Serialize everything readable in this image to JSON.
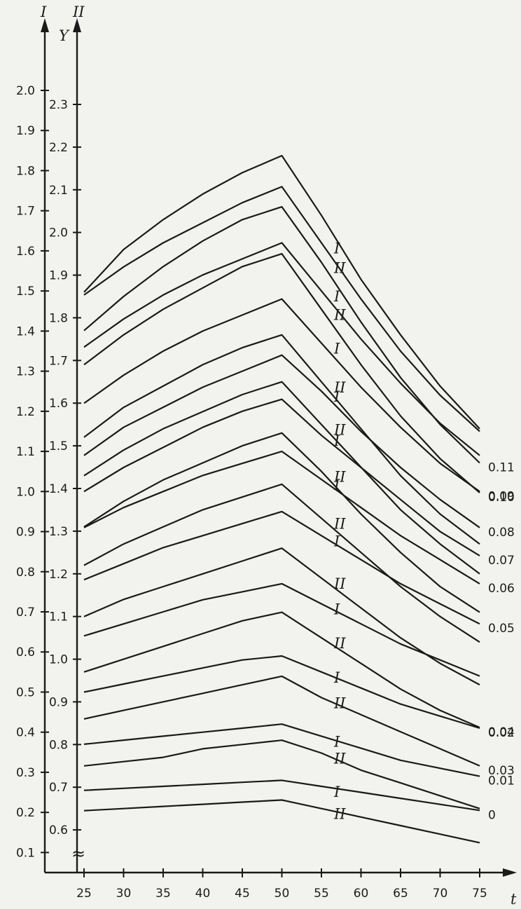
{
  "chart_data": {
    "type": "line",
    "axis_labels": {
      "left": "I",
      "right": "II",
      "y": "Y",
      "x": "t"
    },
    "x_ticks": [
      25,
      30,
      35,
      40,
      45,
      50,
      55,
      60,
      65,
      70,
      75
    ],
    "scale_I": {
      "range": [
        0.05,
        2.0
      ],
      "ticks": [
        "0.1",
        "0.2",
        "0.3",
        "0.4",
        "0.5",
        "0.6",
        "0.7",
        "0.8",
        "0.9",
        "1.0",
        "1.1",
        "1.2",
        "1.3",
        "1.4",
        "1.5",
        "1.6",
        "1.7",
        "1.8",
        "1.9",
        "2.0"
      ]
    },
    "scale_II": {
      "range": [
        0.5,
        2.3
      ],
      "ticks": [
        "0.6",
        "0.7",
        "0.8",
        "0.9",
        "1.0",
        "1.1",
        "1.2",
        "1.3",
        "1.4",
        "1.5",
        "1.6",
        "1.7",
        "1.8",
        "1.9",
        "2.0",
        "2.1",
        "2.2",
        "2.3"
      ]
    },
    "break_symbol": "≈",
    "x": [
      25,
      30,
      35,
      40,
      45,
      50,
      55,
      60,
      65,
      70,
      75
    ],
    "series": [
      {
        "scale": "II",
        "end_label": "",
        "marker": "",
        "values": [
          1.86,
          1.96,
          2.03,
          2.09,
          2.14,
          2.18,
          2.04,
          1.89,
          1.76,
          1.64,
          1.54
        ]
      },
      {
        "scale": "II",
        "end_label": "0.11",
        "marker": "II",
        "values": [
          1.77,
          1.85,
          1.92,
          1.98,
          2.03,
          2.06,
          1.93,
          1.79,
          1.66,
          1.55,
          1.46
        ]
      },
      {
        "scale": "I",
        "end_label": "",
        "marker": "I",
        "values": [
          1.49,
          1.56,
          1.62,
          1.67,
          1.72,
          1.76,
          1.62,
          1.48,
          1.35,
          1.24,
          1.15
        ]
      },
      {
        "scale": "II",
        "end_label": "0.10",
        "marker": "II",
        "values": [
          1.69,
          1.76,
          1.82,
          1.87,
          1.92,
          1.95,
          1.82,
          1.69,
          1.57,
          1.47,
          1.39
        ]
      },
      {
        "scale": "I",
        "end_label": "",
        "marker": "I",
        "values": [
          1.36,
          1.43,
          1.49,
          1.54,
          1.58,
          1.62,
          1.5,
          1.38,
          1.27,
          1.17,
          1.09
        ]
      },
      {
        "scale": "II",
        "end_label": "",
        "marker": "II",
        "values": [
          1.52,
          1.59,
          1.64,
          1.69,
          1.73,
          1.76,
          1.65,
          1.54,
          1.43,
          1.34,
          1.27
        ]
      },
      {
        "scale": "I",
        "end_label": "0.09",
        "marker": "I",
        "values": [
          1.22,
          1.29,
          1.35,
          1.4,
          1.44,
          1.48,
          1.37,
          1.26,
          1.16,
          1.07,
          1.0
        ]
      },
      {
        "scale": "II",
        "end_label": "",
        "marker": "II",
        "values": [
          1.43,
          1.49,
          1.54,
          1.58,
          1.62,
          1.65,
          1.55,
          1.45,
          1.35,
          1.27,
          1.2
        ]
      },
      {
        "scale": "I",
        "end_label": "0.08",
        "marker": "I",
        "values": [
          1.09,
          1.16,
          1.21,
          1.26,
          1.3,
          1.34,
          1.25,
          1.15,
          1.06,
          0.98,
          0.91
        ]
      },
      {
        "scale": "II",
        "end_label": "",
        "marker": "II",
        "values": [
          1.31,
          1.37,
          1.42,
          1.46,
          1.5,
          1.53,
          1.44,
          1.34,
          1.25,
          1.17,
          1.11
        ]
      },
      {
        "scale": "I",
        "end_label": "0.07",
        "marker": "I",
        "values": [
          1.0,
          1.06,
          1.11,
          1.16,
          1.2,
          1.23,
          1.14,
          1.06,
          0.98,
          0.9,
          0.84
        ]
      },
      {
        "scale": "II",
        "end_label": "",
        "marker": "II",
        "values": [
          1.22,
          1.27,
          1.31,
          1.35,
          1.38,
          1.41,
          1.33,
          1.25,
          1.17,
          1.1,
          1.04
        ]
      },
      {
        "scale": "I",
        "end_label": "0.06",
        "marker": "I",
        "values": [
          0.91,
          0.96,
          1.0,
          1.04,
          1.07,
          1.1,
          1.03,
          0.96,
          0.89,
          0.83,
          0.77
        ]
      },
      {
        "scale": "II",
        "end_label": "",
        "marker": "II",
        "values": [
          1.1,
          1.14,
          1.17,
          1.2,
          1.23,
          1.26,
          1.19,
          1.12,
          1.05,
          0.99,
          0.94
        ]
      },
      {
        "scale": "I",
        "end_label": "0.05",
        "marker": "I",
        "values": [
          0.78,
          0.82,
          0.86,
          0.89,
          0.92,
          0.95,
          0.89,
          0.83,
          0.77,
          0.72,
          0.67
        ]
      },
      {
        "scale": "II",
        "end_label": "0.04",
        "marker": "II",
        "values": [
          0.97,
          1.0,
          1.03,
          1.06,
          1.09,
          1.11,
          1.05,
          0.99,
          0.93,
          0.88,
          0.84
        ]
      },
      {
        "scale": "I",
        "end_label": "",
        "marker": "I",
        "values": [
          0.64,
          0.67,
          0.7,
          0.73,
          0.75,
          0.77,
          0.72,
          0.67,
          0.62,
          0.58,
          0.54
        ]
      },
      {
        "scale": "II",
        "end_label": "0.03",
        "marker": "II",
        "values": [
          0.86,
          0.88,
          0.9,
          0.92,
          0.94,
          0.96,
          0.91,
          0.87,
          0.83,
          0.79,
          0.75
        ]
      },
      {
        "scale": "I",
        "end_label": "0.02",
        "marker": "I",
        "values": [
          0.5,
          0.52,
          0.54,
          0.56,
          0.58,
          0.59,
          0.55,
          0.51,
          0.47,
          0.44,
          0.41
        ]
      },
      {
        "scale": "II",
        "end_label": "",
        "marker": "II",
        "values": [
          0.75,
          0.76,
          0.77,
          0.79,
          0.8,
          0.81,
          0.78,
          0.74,
          0.71,
          0.68,
          0.65
        ]
      },
      {
        "scale": "I",
        "end_label": "0.01",
        "marker": "I",
        "values": [
          0.37,
          0.38,
          0.39,
          0.4,
          0.41,
          0.42,
          0.39,
          0.36,
          0.33,
          0.31,
          0.29
        ]
      },
      {
        "scale": "II",
        "end_label": "",
        "marker": "II",
        "values": [
          0.645,
          0.65,
          0.655,
          0.66,
          0.665,
          0.67,
          0.65,
          0.63,
          0.61,
          0.59,
          0.57
        ]
      },
      {
        "scale": "I",
        "end_label": "0",
        "marker": "I",
        "values": [
          0.255,
          0.26,
          0.265,
          0.27,
          0.275,
          0.28,
          0.265,
          0.25,
          0.235,
          0.22,
          0.205
        ]
      }
    ]
  }
}
